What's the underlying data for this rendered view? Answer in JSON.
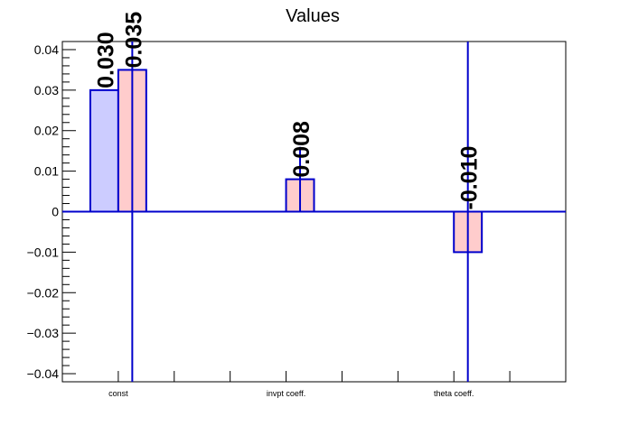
{
  "chart_data": {
    "type": "bar",
    "title": "Values",
    "categories": [
      "const",
      "invpt coeff.",
      "theta coeff."
    ],
    "ylim": [
      -0.042,
      0.042
    ],
    "yticks": [
      "0.04",
      "0.03",
      "0.02",
      "0.01",
      "0",
      "−0.01",
      "−0.02",
      "−0.03",
      "−0.04"
    ],
    "ytick_values": [
      0.04,
      0.03,
      0.02,
      0.01,
      0,
      -0.01,
      -0.02,
      -0.03,
      -0.04
    ],
    "grid": false,
    "series": [
      {
        "values": [
          0.03,
          null,
          null
        ],
        "labels": [
          "0.030",
          "",
          ""
        ],
        "fill": "#ccccff",
        "stroke": "#0000cc"
      },
      {
        "values": [
          0.035,
          0.008,
          -0.01
        ],
        "labels": [
          "0.035",
          "0.008",
          "-0.010"
        ],
        "fill": "#ffcccc",
        "stroke": "#0000cc"
      }
    ],
    "error_bars": [
      {
        "category": "const",
        "series": 1,
        "low": -0.05,
        "high": 0.1
      },
      {
        "category": "invpt coeff.",
        "series": 1,
        "low": 0.0,
        "high": 0.016
      },
      {
        "category": "theta coeff.",
        "series": 1,
        "low": -0.05,
        "high": 0.1
      }
    ]
  }
}
